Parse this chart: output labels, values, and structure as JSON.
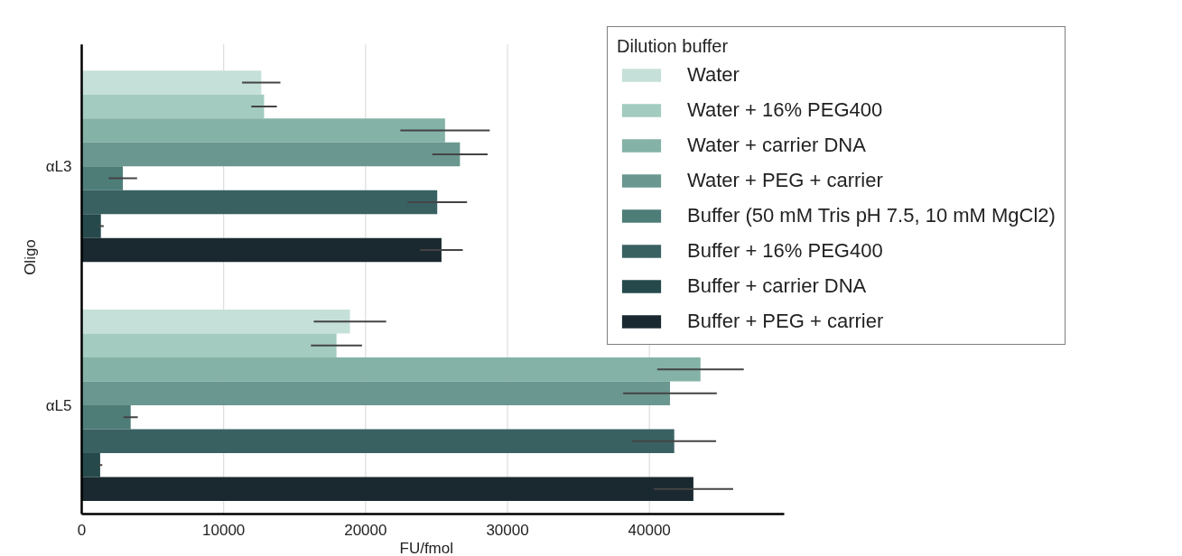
{
  "chart_data": {
    "type": "bar",
    "orientation": "horizontal",
    "xlabel": "FU/fmol",
    "ylabel": "Oligo",
    "legend_title": "Dilution buffer",
    "categories": [
      "αL3",
      "αL5"
    ],
    "xlim": [
      0,
      49500
    ],
    "xticks": [
      0,
      10000,
      20000,
      30000,
      40000
    ],
    "grid": "x",
    "legend": "top right",
    "series": [
      {
        "name": "Water",
        "color": "#c5e0d8",
        "values": [
          12650,
          18900
        ],
        "errors": [
          1350,
          2550
        ]
      },
      {
        "name": "Water + 16% PEG400",
        "color": "#a3cbbf",
        "values": [
          12850,
          17950
        ],
        "errors": [
          900,
          1800
        ]
      },
      {
        "name": "Water + carrier DNA",
        "color": "#84b2a7",
        "values": [
          25600,
          43600
        ],
        "errors": [
          3150,
          3050
        ]
      },
      {
        "name": "Water + PEG + carrier",
        "color": "#6a978f",
        "values": [
          26650,
          41450
        ],
        "errors": [
          1950,
          3300
        ]
      },
      {
        "name": "Buffer (50 mM Tris pH 7.5, 10 mM MgCl2)",
        "color": "#4e7d78",
        "values": [
          2900,
          3450
        ],
        "errors": [
          1000,
          500
        ]
      },
      {
        "name": "Buffer + 16% PEG400",
        "color": "#3a6162",
        "values": [
          25050,
          41750
        ],
        "errors": [
          2100,
          2950
        ]
      },
      {
        "name": "Buffer + carrier DNA",
        "color": "#264a4c",
        "values": [
          1350,
          1300
        ],
        "errors": [
          200,
          150
        ]
      },
      {
        "name": "Buffer + PEG + carrier",
        "color": "#19292f",
        "values": [
          25350,
          43100
        ],
        "errors": [
          1500,
          2800
        ]
      }
    ]
  }
}
